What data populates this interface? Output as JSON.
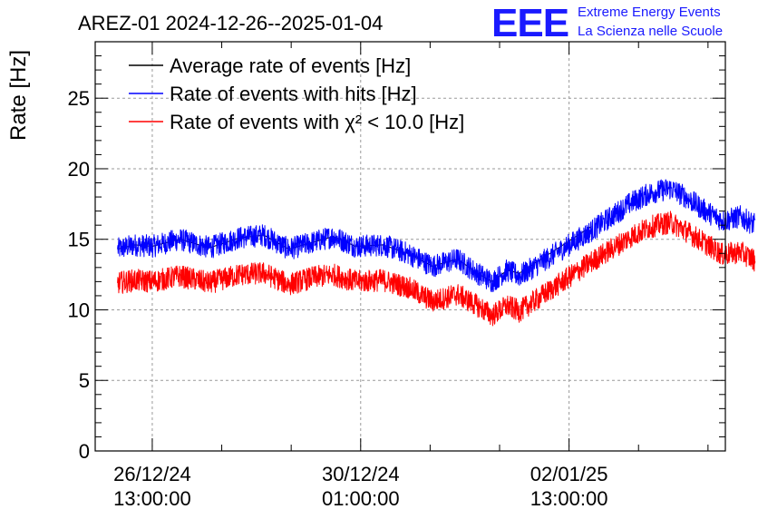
{
  "title": "AREZ-01 2024-12-26--2025-01-04",
  "branding": {
    "logo": "EEE",
    "line1": "Extreme Energy Events",
    "line2": "La Scienza nelle Scuole",
    "color": "#1a1aff"
  },
  "chart_data": {
    "type": "line",
    "ylabel": "Rate [Hz]",
    "ylim": [
      0,
      29
    ],
    "yticks": [
      0,
      5,
      10,
      15,
      20,
      25
    ],
    "x_unit": "date-time",
    "xlim": [
      "2024-12-25T14:00:00",
      "2025-01-05T04:00:00"
    ],
    "xticks": [
      {
        "t": "2024-12-26T13:00:00",
        "date": "26/12/24",
        "time": "13:00:00"
      },
      {
        "t": "2024-12-30T01:00:00",
        "date": "30/12/24",
        "time": "01:00:00"
      },
      {
        "t": "2025-01-02T13:00:00",
        "date": "02/01/25",
        "time": "13:00:00"
      }
    ],
    "grid": true,
    "legend_position": "top-left",
    "series": [
      {
        "name": "Average rate of events [Hz]",
        "color": "#000000",
        "noise": 0.0,
        "points": [
          [
            "2024-12-25T23:00:00",
            14.3
          ],
          [
            "2024-12-26T06:00:00",
            14.6
          ],
          [
            "2024-12-26T13:00:00",
            14.5
          ],
          [
            "2024-12-27T00:00:00",
            15.0
          ],
          [
            "2024-12-27T12:00:00",
            14.4
          ],
          [
            "2024-12-28T00:00:00",
            15.1
          ],
          [
            "2024-12-28T10:00:00",
            15.3
          ],
          [
            "2024-12-28T20:00:00",
            14.3
          ],
          [
            "2024-12-29T06:00:00",
            14.8
          ],
          [
            "2024-12-29T14:00:00",
            15.2
          ],
          [
            "2024-12-29T23:00:00",
            14.5
          ],
          [
            "2024-12-30T10:00:00",
            14.6
          ],
          [
            "2024-12-30T20:00:00",
            14.0
          ],
          [
            "2024-12-31T06:00:00",
            13.1
          ],
          [
            "2024-12-31T16:00:00",
            13.6
          ],
          [
            "2025-01-01T00:00:00",
            12.6
          ],
          [
            "2025-01-01T06:00:00",
            12.0
          ],
          [
            "2025-01-01T12:00:00",
            12.8
          ],
          [
            "2025-01-01T17:00:00",
            12.6
          ],
          [
            "2025-01-02T22:00:00",
            15.9
          ]
        ]
      },
      {
        "name": "Rate of events with hits [Hz]",
        "color": "#0000ff",
        "noise": 0.8,
        "points": [
          [
            "2024-12-25T23:00:00",
            14.3
          ],
          [
            "2024-12-26T06:00:00",
            14.6
          ],
          [
            "2024-12-26T13:00:00",
            14.5
          ],
          [
            "2024-12-27T00:00:00",
            15.0
          ],
          [
            "2024-12-27T12:00:00",
            14.4
          ],
          [
            "2024-12-28T00:00:00",
            15.1
          ],
          [
            "2024-12-28T10:00:00",
            15.3
          ],
          [
            "2024-12-28T20:00:00",
            14.3
          ],
          [
            "2024-12-29T06:00:00",
            14.8
          ],
          [
            "2024-12-29T14:00:00",
            15.2
          ],
          [
            "2024-12-29T23:00:00",
            14.5
          ],
          [
            "2024-12-30T10:00:00",
            14.6
          ],
          [
            "2024-12-30T20:00:00",
            14.0
          ],
          [
            "2024-12-31T06:00:00",
            13.1
          ],
          [
            "2024-12-31T16:00:00",
            13.6
          ],
          [
            "2025-01-01T00:00:00",
            12.6
          ],
          [
            "2025-01-01T06:00:00",
            12.0
          ],
          [
            "2025-01-01T12:00:00",
            12.8
          ],
          [
            "2025-01-01T17:00:00",
            12.4
          ],
          [
            "2025-01-02T22:00:00",
            15.6
          ],
          [
            "2025-01-03T06:00:00",
            16.6
          ],
          [
            "2025-01-03T14:00:00",
            17.6
          ],
          [
            "2025-01-03T22:00:00",
            18.3
          ],
          [
            "2025-01-04T06:00:00",
            18.6
          ],
          [
            "2025-01-04T12:00:00",
            18.0
          ],
          [
            "2025-01-04T20:00:00",
            17.0
          ],
          [
            "2025-01-05T03:00:00",
            16.3
          ],
          [
            "2025-01-05T10:00:00",
            16.6
          ],
          [
            "2025-01-05T16:00:00",
            16.0
          ]
        ]
      },
      {
        "name": "Rate of events with χ² < 10.0 [Hz]",
        "color": "#ff0000",
        "noise": 0.8,
        "points": [
          [
            "2024-12-25T23:00:00",
            11.9
          ],
          [
            "2024-12-26T06:00:00",
            12.1
          ],
          [
            "2024-12-26T13:00:00",
            12.0
          ],
          [
            "2024-12-27T00:00:00",
            12.4
          ],
          [
            "2024-12-27T12:00:00",
            11.9
          ],
          [
            "2024-12-28T00:00:00",
            12.5
          ],
          [
            "2024-12-28T10:00:00",
            12.6
          ],
          [
            "2024-12-28T20:00:00",
            11.8
          ],
          [
            "2024-12-29T06:00:00",
            12.3
          ],
          [
            "2024-12-29T14:00:00",
            12.5
          ],
          [
            "2024-12-29T23:00:00",
            12.0
          ],
          [
            "2024-12-30T10:00:00",
            12.1
          ],
          [
            "2024-12-30T20:00:00",
            11.6
          ],
          [
            "2024-12-31T06:00:00",
            10.6
          ],
          [
            "2024-12-31T16:00:00",
            11.1
          ],
          [
            "2025-01-01T00:00:00",
            10.3
          ],
          [
            "2025-01-01T06:00:00",
            9.6
          ],
          [
            "2025-01-01T12:00:00",
            10.3
          ],
          [
            "2025-01-01T17:00:00",
            9.9
          ],
          [
            "2025-01-02T22:00:00",
            13.4
          ],
          [
            "2025-01-03T06:00:00",
            14.3
          ],
          [
            "2025-01-03T14:00:00",
            15.2
          ],
          [
            "2025-01-03T22:00:00",
            15.9
          ],
          [
            "2025-01-04T06:00:00",
            16.2
          ],
          [
            "2025-01-04T12:00:00",
            15.6
          ],
          [
            "2025-01-04T20:00:00",
            14.7
          ],
          [
            "2025-01-05T03:00:00",
            13.9
          ],
          [
            "2025-01-05T10:00:00",
            14.1
          ],
          [
            "2025-01-05T16:00:00",
            13.5
          ]
        ]
      }
    ]
  }
}
